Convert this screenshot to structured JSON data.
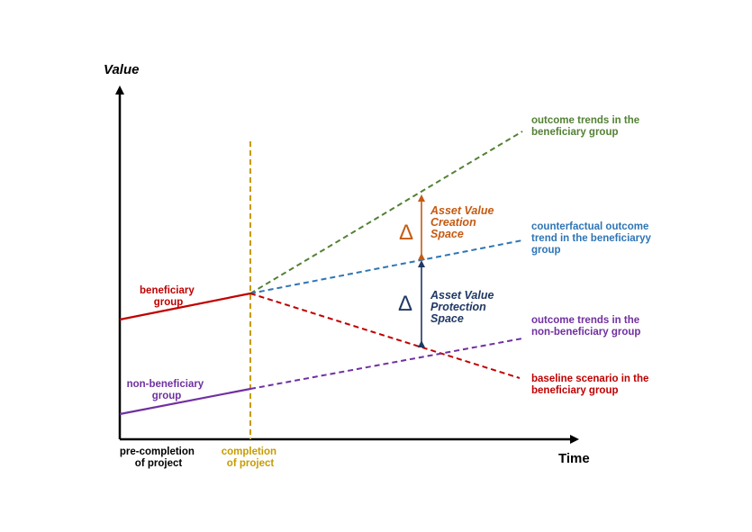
{
  "axes": {
    "y_label": "Value",
    "x_label": "Time"
  },
  "x_markers": {
    "pre_completion": [
      "pre-completion",
      "of project"
    ],
    "completion": [
      "completion",
      "of project"
    ]
  },
  "group_labels": {
    "beneficiary": [
      "beneficiary",
      "group"
    ],
    "non_beneficiary": [
      "non-beneficiary",
      "group"
    ]
  },
  "trend_labels": {
    "outcome_beneficiary": [
      "outcome trends in the",
      "beneficiary group"
    ],
    "counterfactual": [
      "counterfactual outcome",
      "trend in the beneficiaryy",
      "group"
    ],
    "outcome_non_beneficiary": [
      "outcome trends in the",
      "non-beneficiary group"
    ],
    "baseline": [
      "baseline scenario in the",
      "beneficiary group"
    ]
  },
  "spaces": {
    "creation": {
      "delta": "Δ",
      "lines": [
        "Asset Value",
        "Creation",
        "Space"
      ]
    },
    "protection": {
      "delta": "Δ",
      "lines": [
        "Asset Value",
        "Protection",
        "Space"
      ]
    }
  },
  "colors": {
    "axis": "#000000",
    "beneficiary": "#c00000",
    "non_beneficiary": "#7030a0",
    "outcome_beneficiary": "#538135",
    "counterfactual": "#2e75b6",
    "completion": "#c89b00",
    "creation": "#c55a11",
    "protection": "#1f3864"
  }
}
